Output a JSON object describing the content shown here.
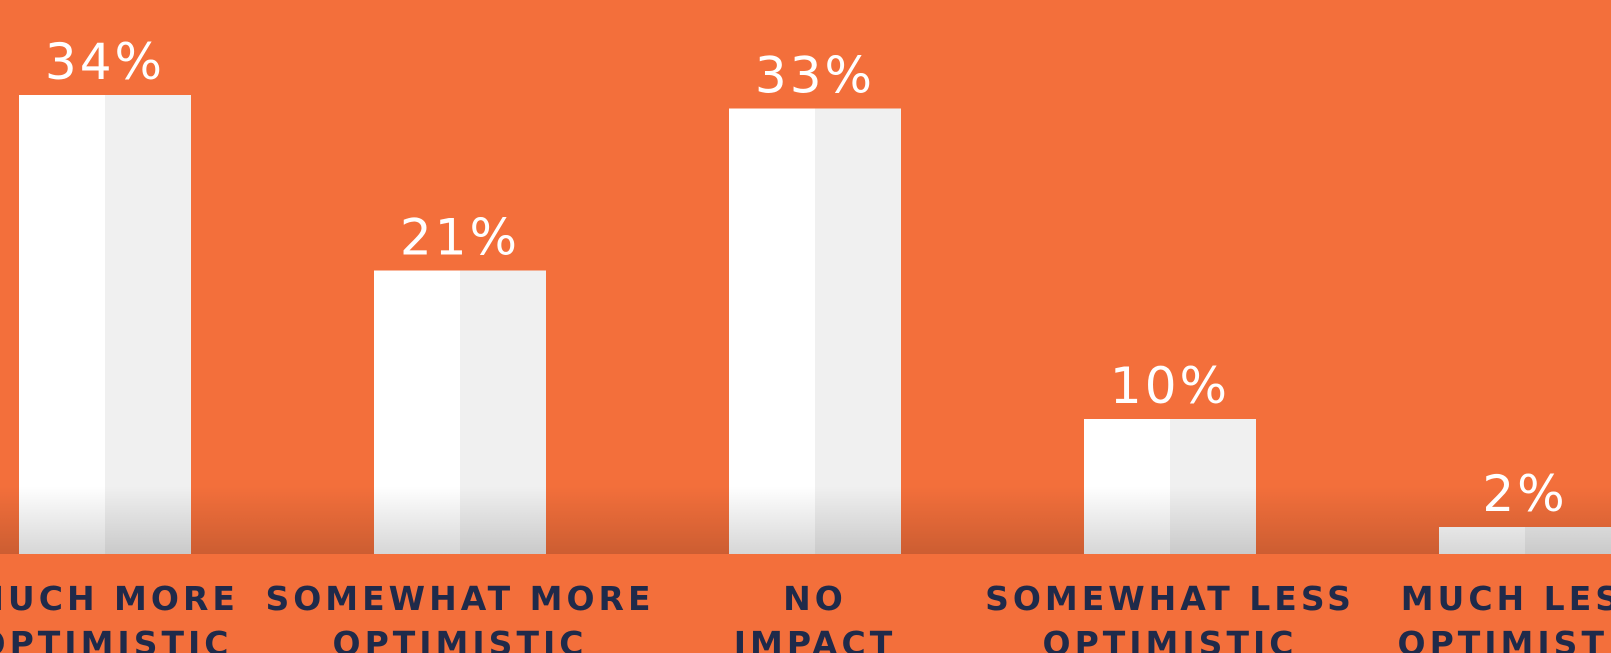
{
  "colors": {
    "background": "#f36f3b",
    "bar_left": "#ffffff",
    "bar_right": "#f0f0f0",
    "label_text": "#1f2a4a",
    "value_text": "#ffffff"
  },
  "chart_data": {
    "type": "bar",
    "categories": [
      [
        "MUCH MORE",
        "OPTIMISTIC"
      ],
      [
        "SOMEWHAT MORE",
        "OPTIMISTIC"
      ],
      [
        "NO",
        "IMPACT"
      ],
      [
        "SOMEWHAT LESS",
        "OPTIMISTIC"
      ],
      [
        "MUCH LESS",
        "OPTIMISTIC"
      ]
    ],
    "values": [
      34,
      21,
      33,
      10,
      2
    ],
    "value_labels": [
      "34%",
      "21%",
      "33%",
      "10%",
      "2%"
    ],
    "ylim": [
      0,
      34
    ],
    "grid": false,
    "legend": "none"
  }
}
